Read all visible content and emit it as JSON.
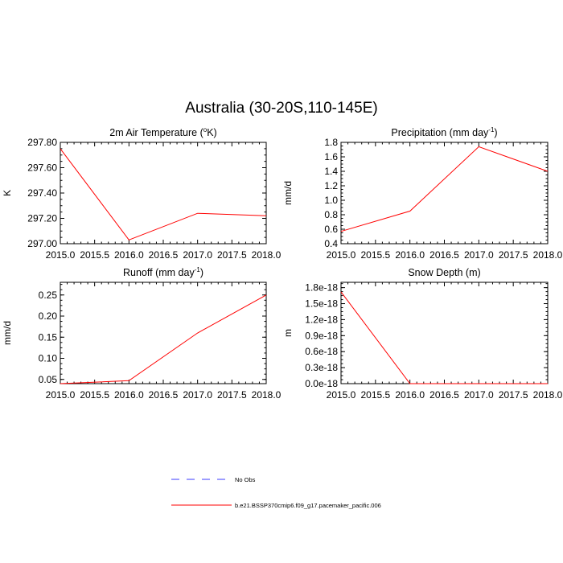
{
  "figure": {
    "title": "Australia (30-20S,110-145E)"
  },
  "legend": [
    {
      "label": "No Obs",
      "color": "#3b3bff",
      "dash": "dashed"
    },
    {
      "label": "b.e21.BSSP370cmip6.f09_g17.pacemaker_pacific.006",
      "color": "#ff0000",
      "dash": "solid"
    }
  ],
  "chart_data": [
    {
      "type": "line",
      "title": "2m Air Temperature (°K)",
      "title_main": "2m Air Temperature (",
      "title_sup": "o",
      "title_tail": "K)",
      "ylabel": "K",
      "xlabel": "",
      "xlim": [
        2015.0,
        2018.0
      ],
      "ylim": [
        297.0,
        297.8
      ],
      "xticks": [
        "2015.0",
        "2015.5",
        "2016.0",
        "2016.5",
        "2017.0",
        "2017.5",
        "2018.0"
      ],
      "yticks": [
        "297.00",
        "297.20",
        "297.40",
        "297.60",
        "297.80"
      ],
      "series": [
        {
          "name": "b.e21.BSSP370cmip6.f09_g17.pacemaker_pacific.006",
          "color": "#ff0000",
          "x": [
            2015,
            2016,
            2017,
            2018
          ],
          "y": [
            297.75,
            297.03,
            297.24,
            297.22
          ]
        }
      ]
    },
    {
      "type": "line",
      "title": "Precipitation (mm day-1)",
      "title_main": "Precipitation (mm day",
      "title_sup": "-1",
      "title_tail": ")",
      "ylabel": "mm/d",
      "xlabel": "",
      "xlim": [
        2015.0,
        2018.0
      ],
      "ylim": [
        0.4,
        1.8
      ],
      "xticks": [
        "2015.0",
        "2015.5",
        "2016.0",
        "2016.5",
        "2017.0",
        "2017.5",
        "2018.0"
      ],
      "yticks": [
        "0.4",
        "0.6",
        "0.8",
        "1.0",
        "1.2",
        "1.4",
        "1.6",
        "1.8"
      ],
      "series": [
        {
          "name": "b.e21.BSSP370cmip6.f09_g17.pacemaker_pacific.006",
          "color": "#ff0000",
          "x": [
            2015,
            2016,
            2017,
            2018
          ],
          "y": [
            0.57,
            0.85,
            1.74,
            1.4
          ]
        }
      ]
    },
    {
      "type": "line",
      "title": "Runoff (mm day-1)",
      "title_main": "Runoff (mm day",
      "title_sup": "-1",
      "title_tail": ")",
      "ylabel": "mm/d",
      "xlabel": "",
      "xlim": [
        2015.0,
        2018.0
      ],
      "ylim": [
        0.04,
        0.28
      ],
      "xticks": [
        "2015.0",
        "2015.5",
        "2016.0",
        "2016.5",
        "2017.0",
        "2017.5",
        "2018.0"
      ],
      "yticks": [
        "0.05",
        "0.10",
        "0.15",
        "0.20",
        "0.25"
      ],
      "ytick_values": [
        0.05,
        0.1,
        0.15,
        0.2,
        0.25
      ],
      "series": [
        {
          "name": "b.e21.BSSP370cmip6.f09_g17.pacemaker_pacific.006",
          "color": "#ff0000",
          "x": [
            2015,
            2016,
            2017,
            2018
          ],
          "y": [
            0.04,
            0.047,
            0.16,
            0.25
          ]
        }
      ]
    },
    {
      "type": "line",
      "title": "Snow Depth (m)",
      "title_main": "Snow Depth (m)",
      "title_sup": "",
      "title_tail": "",
      "ylabel": "m",
      "xlabel": "",
      "xlim": [
        2015.0,
        2018.0
      ],
      "ylim": [
        0.0,
        1.9e-18
      ],
      "xticks": [
        "2015.0",
        "2015.5",
        "2016.0",
        "2016.5",
        "2017.0",
        "2017.5",
        "2018.0"
      ],
      "yticks": [
        "0.0e-18",
        "0.3e-18",
        "0.6e-18",
        "0.9e-18",
        "1.2e-18",
        "1.5e-18",
        "1.8e-18"
      ],
      "ytick_values": [
        0.0,
        3e-19,
        6e-19,
        9e-19,
        1.2e-18,
        1.5e-18,
        1.8e-18
      ],
      "series": [
        {
          "name": "b.e21.BSSP370cmip6.f09_g17.pacemaker_pacific.006",
          "color": "#ff0000",
          "x": [
            2015,
            2016,
            2017,
            2018
          ],
          "y": [
            1.72e-18,
            0.0,
            0.0,
            0.0
          ]
        }
      ]
    }
  ]
}
